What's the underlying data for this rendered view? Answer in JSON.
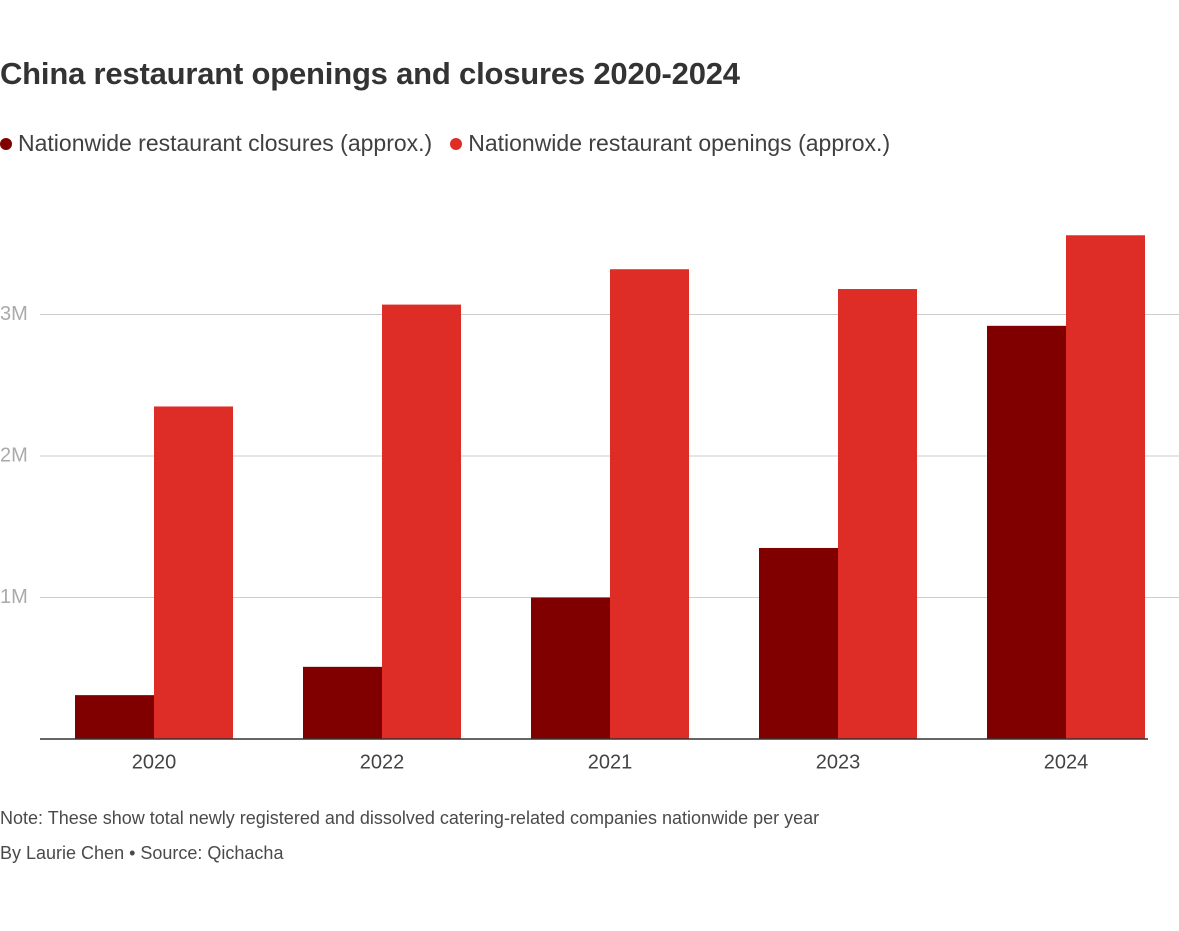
{
  "title": "China restaurant openings and closures 2020-2024",
  "note": "Note: These show total newly registered and dissolved catering-related companies nationwide per year",
  "byline": "By Laurie Chen • Source: Qichacha",
  "colors": {
    "closures": "#800000",
    "openings": "#de2d26",
    "grid": "#cccccc",
    "axis": "#333333",
    "tick_text": "#aaaaaa",
    "category_text": "#444444"
  },
  "chart_data": {
    "type": "bar",
    "title": "China restaurant openings and closures 2020-2024",
    "categories": [
      "2020",
      "2022",
      "2021",
      "2023",
      "2024"
    ],
    "series": [
      {
        "name": "Nationwide restaurant closures (approx.)",
        "color": "#800000",
        "values": [
          310000,
          510000,
          1000000,
          1350000,
          2920000
        ]
      },
      {
        "name": "Nationwide restaurant openings (approx.)",
        "color": "#de2d26",
        "values": [
          2350000,
          3070000,
          3320000,
          3180000,
          3560000
        ]
      }
    ],
    "ylim": [
      0,
      3600000
    ],
    "yticks": [
      {
        "value": 1000000,
        "label": "1M"
      },
      {
        "value": 2000000,
        "label": "2M"
      },
      {
        "value": 3000000,
        "label": "3M"
      }
    ],
    "xlabel": "",
    "ylabel": "",
    "grid": true,
    "legend_position": "top-left"
  }
}
